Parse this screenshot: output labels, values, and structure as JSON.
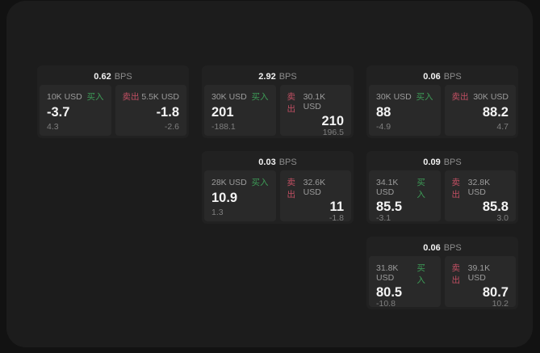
{
  "labels": {
    "bps_unit": "BPS",
    "buy": "买入",
    "sell": "卖出"
  },
  "colors": {
    "background": "#121212",
    "window": "#1c1c1c",
    "card": "#212121",
    "tile": "#292929",
    "buy_green": "#3d9c57",
    "sell_red": "#c14f63"
  },
  "cards": [
    {
      "bps": "0.62",
      "buy": {
        "amount": "10K USD",
        "value": "-3.7",
        "sub": "4.3"
      },
      "sell": {
        "amount": "5.5K USD",
        "value": "-1.8",
        "sub": "-2.6"
      }
    },
    {
      "bps": "2.92",
      "buy": {
        "amount": "30K USD",
        "value": "201",
        "sub": "-188.1"
      },
      "sell": {
        "amount": "30.1K USD",
        "value": "210",
        "sub": "196.5"
      }
    },
    {
      "bps": "0.06",
      "buy": {
        "amount": "30K USD",
        "value": "88",
        "sub": "-4.9"
      },
      "sell": {
        "amount": "30K USD",
        "value": "88.2",
        "sub": "4.7"
      }
    },
    {
      "bps": "0.03",
      "buy": {
        "amount": "28K USD",
        "value": "10.9",
        "sub": "1.3"
      },
      "sell": {
        "amount": "32.6K USD",
        "value": "11",
        "sub": "-1.8"
      }
    },
    {
      "bps": "0.09",
      "buy": {
        "amount": "34.1K USD",
        "value": "85.5",
        "sub": "-3.1"
      },
      "sell": {
        "amount": "32.8K USD",
        "value": "85.8",
        "sub": "3.0"
      }
    },
    {
      "bps": "0.06",
      "buy": {
        "amount": "31.8K USD",
        "value": "80.5",
        "sub": "-10.8"
      },
      "sell": {
        "amount": "39.1K USD",
        "value": "80.7",
        "sub": "10.2"
      }
    }
  ]
}
